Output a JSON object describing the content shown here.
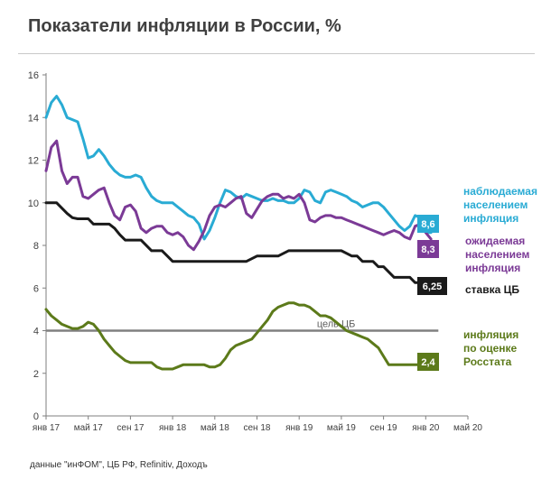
{
  "title": "Показатели инфляции в России, %",
  "source": "данные \"инФОМ\", ЦБ РФ, Refinitiv, Доходъ",
  "chart_data": {
    "type": "line",
    "title": "Показатели инфляции в России, %",
    "ylim": [
      0,
      16
    ],
    "yticks": [
      0,
      2,
      4,
      6,
      8,
      10,
      12,
      14,
      16
    ],
    "xlim": [
      0,
      40
    ],
    "xticks": [
      {
        "pos": 0,
        "label": "янв 17"
      },
      {
        "pos": 4,
        "label": "май 17"
      },
      {
        "pos": 8,
        "label": "сен 17"
      },
      {
        "pos": 12,
        "label": "янв 18"
      },
      {
        "pos": 16,
        "label": "май 18"
      },
      {
        "pos": 20,
        "label": "сен 18"
      },
      {
        "pos": 24,
        "label": "янв 19"
      },
      {
        "pos": 28,
        "label": "май 19"
      },
      {
        "pos": 32,
        "label": "сен 19"
      },
      {
        "pos": 36,
        "label": "янв 20"
      },
      {
        "pos": 40,
        "label": "май 20"
      }
    ],
    "target": {
      "value": 4,
      "label": "цель ЦБ",
      "color": "#808080"
    },
    "series": [
      {
        "name": "наблюдаемая населением инфляция",
        "label_lines": [
          "наблюдаемая",
          "населением",
          "инфляция"
        ],
        "color": "#29abd4",
        "end_label": "8,6",
        "x": [
          0,
          0.5,
          1,
          1.5,
          2,
          2.5,
          3,
          3.5,
          4,
          4.5,
          5,
          5.5,
          6,
          6.5,
          7,
          7.5,
          8,
          8.5,
          9,
          9.5,
          10,
          10.5,
          11,
          11.5,
          12,
          12.5,
          13,
          13.5,
          14,
          14.5,
          15,
          15.5,
          16,
          16.5,
          17,
          17.5,
          18,
          18.5,
          19,
          19.5,
          20,
          20.5,
          21,
          21.5,
          22,
          22.5,
          23,
          23.5,
          24,
          24.5,
          25,
          25.5,
          26,
          26.5,
          27,
          27.5,
          28,
          28.5,
          29,
          29.5,
          30,
          30.5,
          31,
          31.5,
          32,
          32.5,
          33,
          33.5,
          34,
          34.5,
          35,
          35.5,
          36,
          36.5
        ],
        "values": [
          14.0,
          14.7,
          15.0,
          14.6,
          14.0,
          13.9,
          13.8,
          13.0,
          12.1,
          12.2,
          12.5,
          12.2,
          11.8,
          11.5,
          11.3,
          11.2,
          11.2,
          11.3,
          11.2,
          10.7,
          10.3,
          10.1,
          10.0,
          10.0,
          10.0,
          9.8,
          9.6,
          9.4,
          9.3,
          9.0,
          8.3,
          8.7,
          9.3,
          10.0,
          10.6,
          10.5,
          10.3,
          10.2,
          10.4,
          10.3,
          10.2,
          10.1,
          10.1,
          10.2,
          10.1,
          10.1,
          10.0,
          10.0,
          10.2,
          10.6,
          10.5,
          10.1,
          10.0,
          10.5,
          10.6,
          10.5,
          10.4,
          10.3,
          10.1,
          10.0,
          9.8,
          9.9,
          10.0,
          10.0,
          9.8,
          9.5,
          9.2,
          8.9,
          8.7,
          8.9,
          9.4,
          9.3,
          8.6,
          8.6
        ]
      },
      {
        "name": "ожидаемая населением инфляция",
        "label_lines": [
          "ожидаемая",
          "населением",
          "инфляция"
        ],
        "color": "#7b3a96",
        "end_label": "8,3",
        "x": [
          0,
          0.5,
          1,
          1.5,
          2,
          2.5,
          3,
          3.5,
          4,
          4.5,
          5,
          5.5,
          6,
          6.5,
          7,
          7.5,
          8,
          8.5,
          9,
          9.5,
          10,
          10.5,
          11,
          11.5,
          12,
          12.5,
          13,
          13.5,
          14,
          14.5,
          15,
          15.5,
          16,
          16.5,
          17,
          17.5,
          18,
          18.5,
          19,
          19.5,
          20,
          20.5,
          21,
          21.5,
          22,
          22.5,
          23,
          23.5,
          24,
          24.5,
          25,
          25.5,
          26,
          26.5,
          27,
          27.5,
          28,
          28.5,
          29,
          29.5,
          30,
          30.5,
          31,
          31.5,
          32,
          32.5,
          33,
          33.5,
          34,
          34.5,
          35,
          35.5,
          36,
          36.5
        ],
        "values": [
          11.5,
          12.6,
          12.9,
          11.5,
          10.9,
          11.2,
          11.2,
          10.3,
          10.2,
          10.4,
          10.6,
          10.7,
          10.0,
          9.4,
          9.2,
          9.8,
          9.9,
          9.6,
          8.8,
          8.6,
          8.8,
          8.9,
          8.9,
          8.6,
          8.5,
          8.6,
          8.4,
          8.0,
          7.8,
          8.2,
          8.7,
          9.4,
          9.8,
          9.9,
          9.8,
          10.0,
          10.2,
          10.3,
          9.5,
          9.3,
          9.7,
          10.1,
          10.3,
          10.4,
          10.4,
          10.2,
          10.3,
          10.2,
          10.4,
          10.0,
          9.2,
          9.1,
          9.3,
          9.4,
          9.4,
          9.3,
          9.3,
          9.2,
          9.1,
          9.0,
          8.9,
          8.8,
          8.7,
          8.6,
          8.5,
          8.6,
          8.7,
          8.6,
          8.4,
          8.3,
          8.9,
          9.0,
          8.6,
          8.3
        ]
      },
      {
        "name": "ставка ЦБ",
        "label_lines": [
          "ставка ЦБ"
        ],
        "color": "#1a1a1a",
        "end_label": "6,25",
        "x": [
          0,
          1,
          1.5,
          2,
          2.5,
          3,
          4,
          4.5,
          5,
          6,
          6.5,
          7,
          7.5,
          8,
          8.5,
          9,
          10,
          10.5,
          11,
          11.5,
          12,
          12.5,
          13,
          14,
          15,
          16,
          17,
          18,
          19,
          20,
          21,
          21.5,
          22,
          23,
          24,
          25,
          26,
          27,
          28,
          29,
          29.5,
          30,
          30.5,
          31,
          31.5,
          32,
          33,
          33.5,
          34,
          34.5,
          35,
          35.5,
          36
        ],
        "values": [
          10.0,
          10.0,
          9.75,
          9.5,
          9.3,
          9.25,
          9.25,
          9.0,
          9.0,
          9.0,
          8.8,
          8.5,
          8.25,
          8.25,
          8.25,
          8.25,
          7.75,
          7.75,
          7.75,
          7.5,
          7.25,
          7.25,
          7.25,
          7.25,
          7.25,
          7.25,
          7.25,
          7.25,
          7.25,
          7.5,
          7.5,
          7.5,
          7.5,
          7.75,
          7.75,
          7.75,
          7.75,
          7.75,
          7.75,
          7.5,
          7.5,
          7.25,
          7.25,
          7.25,
          7.0,
          7.0,
          6.5,
          6.5,
          6.5,
          6.5,
          6.25,
          6.25,
          6.25
        ]
      },
      {
        "name": "инфляция по оценке Росстата",
        "label_lines": [
          "инфляция",
          "по оценке",
          "Росстата"
        ],
        "color": "#5c7a1a",
        "end_label": "2,4",
        "x": [
          0,
          0.5,
          1,
          1.5,
          2,
          2.5,
          3,
          3.5,
          4,
          4.5,
          5,
          5.5,
          6,
          6.5,
          7,
          7.5,
          8,
          8.5,
          9,
          9.5,
          10,
          10.5,
          11,
          11.5,
          12,
          12.5,
          13,
          13.5,
          14,
          14.5,
          15,
          15.5,
          16,
          16.5,
          17,
          17.5,
          18,
          18.5,
          19,
          19.5,
          20,
          20.5,
          21,
          21.5,
          22,
          22.5,
          23,
          23.5,
          24,
          24.5,
          25,
          25.5,
          26,
          26.5,
          27,
          27.5,
          28,
          28.5,
          29,
          29.5,
          30,
          30.5,
          31,
          31.5,
          32,
          32.5,
          33,
          33.5,
          34,
          34.5,
          35,
          35.5,
          36,
          36.5
        ],
        "values": [
          5.0,
          4.7,
          4.5,
          4.3,
          4.2,
          4.1,
          4.1,
          4.2,
          4.4,
          4.3,
          4.0,
          3.6,
          3.3,
          3.0,
          2.8,
          2.6,
          2.5,
          2.5,
          2.5,
          2.5,
          2.5,
          2.3,
          2.2,
          2.2,
          2.2,
          2.3,
          2.4,
          2.4,
          2.4,
          2.4,
          2.4,
          2.3,
          2.3,
          2.4,
          2.7,
          3.1,
          3.3,
          3.4,
          3.5,
          3.6,
          3.9,
          4.2,
          4.5,
          4.9,
          5.1,
          5.2,
          5.3,
          5.3,
          5.2,
          5.2,
          5.1,
          4.9,
          4.7,
          4.7,
          4.6,
          4.4,
          4.2,
          4.0,
          3.9,
          3.8,
          3.7,
          3.6,
          3.4,
          3.2,
          2.8,
          2.4,
          2.4,
          2.4,
          2.4,
          2.4,
          2.4,
          2.4,
          2.4,
          2.4
        ]
      }
    ]
  }
}
